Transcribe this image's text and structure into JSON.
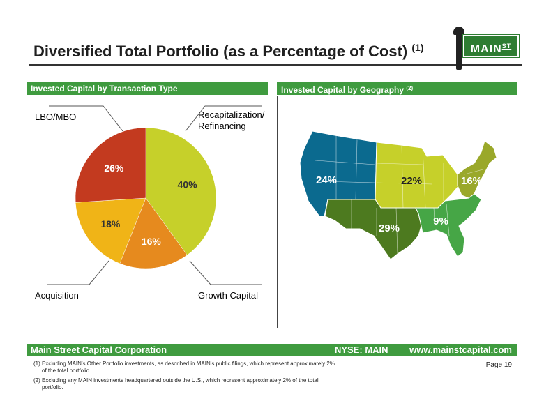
{
  "page": {
    "title": "Diversified Total Portfolio (as a Percentage of Cost)",
    "title_footnote": "(1)",
    "page_number": "Page 19"
  },
  "logo": {
    "text": "MAIN",
    "suffix": "ST"
  },
  "left_panel": {
    "header": "Invested Capital by Transaction Type"
  },
  "right_panel": {
    "header": "Invested Capital by Geography",
    "header_footnote": "(2)"
  },
  "chart_data": [
    {
      "type": "pie",
      "title": "Invested Capital by Transaction Type",
      "slices": [
        {
          "label": "Recapitalization/ Refinancing",
          "value": 40,
          "value_label": "40%",
          "color": "#c6d02a"
        },
        {
          "label": "Growth Capital",
          "value": 16,
          "value_label": "16%",
          "color": "#e68a1e"
        },
        {
          "label": "Acquisition",
          "value": 18,
          "value_label": "18%",
          "color": "#f0b417"
        },
        {
          "label": "LBO/MBO",
          "value": 26,
          "value_label": "26%",
          "color": "#c33a1f"
        }
      ]
    },
    {
      "type": "map",
      "title": "Invested Capital by Geography",
      "regions": [
        {
          "value": 24,
          "value_label": "24%",
          "color": "#0b6a8f"
        },
        {
          "value": 22,
          "value_label": "22%",
          "color": "#c6d02a"
        },
        {
          "value": 16,
          "value_label": "16%",
          "color": "#9aa82a"
        },
        {
          "value": 29,
          "value_label": "29%",
          "color": "#4d7a1f"
        },
        {
          "value": 9,
          "value_label": "9%",
          "color": "#46a646"
        }
      ]
    }
  ],
  "footer": {
    "company": "Main Street Capital Corporation",
    "ticker": "NYSE: MAIN",
    "website": "www.mainstcapital.com"
  },
  "notes": [
    "(1) Excluding MAIN’s Other Portfolio investments, as described in MAIN’s public filings, which represent approximately 2% of the total portfolio.",
    "(2) Excluding any MAIN investments headquartered outside the U.S., which represent approximately 2% of the total portfolio."
  ]
}
